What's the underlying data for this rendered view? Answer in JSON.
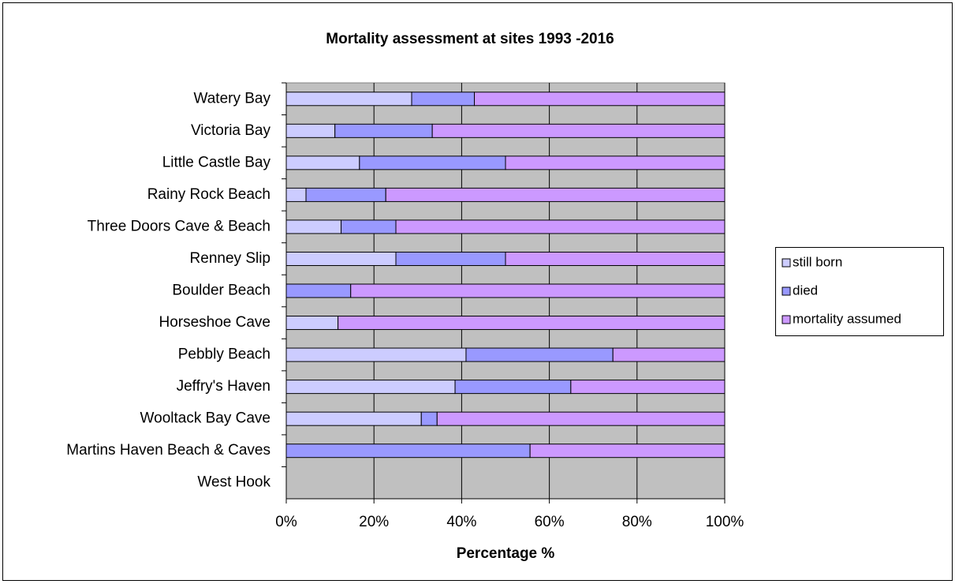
{
  "chart_data": {
    "type": "stacked_barh",
    "title": "Mortality assessment at sites 1993 -2016",
    "x_label": "Percentage  %",
    "categories": [
      "Watery Bay",
      "Victoria Bay",
      "Little Castle Bay",
      "Rainy Rock Beach",
      "Three Doors Cave & Beach",
      "Renney Slip",
      "Boulder Beach",
      "Horseshoe Cave",
      "Pebbly Beach",
      "Jeffry's Haven",
      "Wooltack Bay Cave",
      "Martins Haven Beach & Caves",
      "West Hook"
    ],
    "series": [
      {
        "name": "still born",
        "color": "#ccccff",
        "values": [
          28.6,
          11.1,
          16.7,
          4.5,
          12.5,
          25,
          0,
          11.8,
          41,
          38.5,
          30.8,
          0,
          0
        ]
      },
      {
        "name": "died",
        "color": "#9999ff",
        "values": [
          14.3,
          22.2,
          33.3,
          18.2,
          12.5,
          25,
          14.7,
          0,
          33.5,
          26.4,
          3.6,
          55.6,
          0
        ]
      },
      {
        "name": "mortality assumed",
        "color": "#cc99ff",
        "values": [
          57.1,
          66.7,
          50,
          77.3,
          75,
          50,
          85.3,
          88.2,
          25.5,
          35.1,
          65.6,
          44.4,
          0
        ]
      }
    ],
    "xlim": [
      0,
      100
    ],
    "xticks": [
      {
        "value": 0,
        "label": "0%"
      },
      {
        "value": 20,
        "label": "20%"
      },
      {
        "value": 40,
        "label": "40%"
      },
      {
        "value": 60,
        "label": "60%"
      },
      {
        "value": 80,
        "label": "80%"
      },
      {
        "value": 100,
        "label": "100%"
      }
    ],
    "grid": true,
    "legend": "right",
    "plot_background": "#c0c0c0"
  }
}
